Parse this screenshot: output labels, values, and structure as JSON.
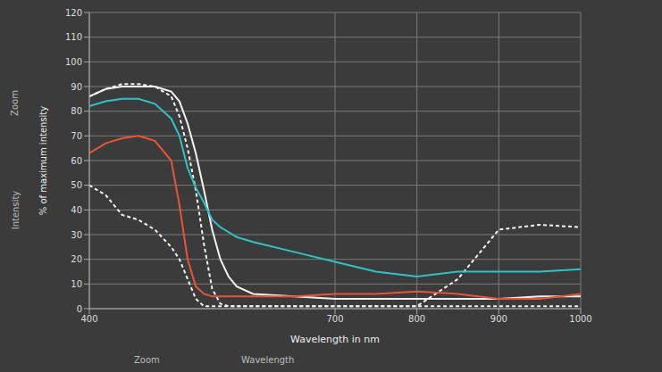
{
  "chart_data": {
    "type": "line",
    "x_label": "Wavelength in nm",
    "y_label": "% of maximum intensity",
    "x": [
      400,
      420,
      440,
      460,
      480,
      500,
      510,
      520,
      530,
      540,
      550,
      560,
      570,
      580,
      600,
      650,
      700,
      750,
      800,
      850,
      900,
      950,
      1000
    ],
    "series": [
      {
        "color": "#f2f2f2",
        "line_style": "solid",
        "values": [
          86,
          89,
          90,
          90,
          90,
          88,
          84,
          75,
          63,
          48,
          32,
          20,
          13,
          9,
          6,
          5,
          4,
          4,
          4,
          4,
          4,
          5,
          5
        ]
      },
      {
        "color": "#f2f2f2",
        "line_style": "dashed",
        "values": [
          86,
          89,
          91,
          91,
          90,
          86,
          78,
          65,
          48,
          26,
          8,
          2,
          1,
          1,
          1,
          1,
          1,
          1,
          1,
          12,
          32,
          34,
          33
        ]
      },
      {
        "color": "#f2f2f2",
        "line_style": "dashed",
        "values": [
          50,
          46,
          38,
          36,
          32,
          25,
          20,
          12,
          4,
          1,
          1,
          1,
          1,
          1,
          1,
          1,
          1,
          1,
          1,
          1,
          1,
          1,
          1
        ]
      },
      {
        "color": "#2ec4c4",
        "line_style": "solid",
        "values": [
          82,
          84,
          85,
          85,
          83,
          77,
          70,
          57,
          49,
          43,
          36,
          33,
          31,
          29,
          27,
          23,
          19,
          15,
          13,
          15,
          15,
          15,
          16
        ]
      },
      {
        "color": "#e8553a",
        "line_style": "solid",
        "values": [
          63,
          67,
          69,
          70,
          68,
          60,
          42,
          20,
          9,
          6,
          5,
          5,
          5,
          5,
          5,
          5,
          6,
          6,
          7,
          6,
          4,
          4,
          6
        ]
      }
    ],
    "xlim": [
      400,
      1000
    ],
    "xticks": [
      400,
      700,
      800,
      900,
      1000
    ],
    "ylim": [
      0,
      120
    ],
    "yticks": [
      0,
      10,
      20,
      30,
      40,
      50,
      60,
      70,
      80,
      90,
      100,
      110,
      120
    ],
    "grid": true,
    "annotations": [
      "Zoom",
      "Intensity",
      "Zoom",
      "Wavelength"
    ]
  }
}
